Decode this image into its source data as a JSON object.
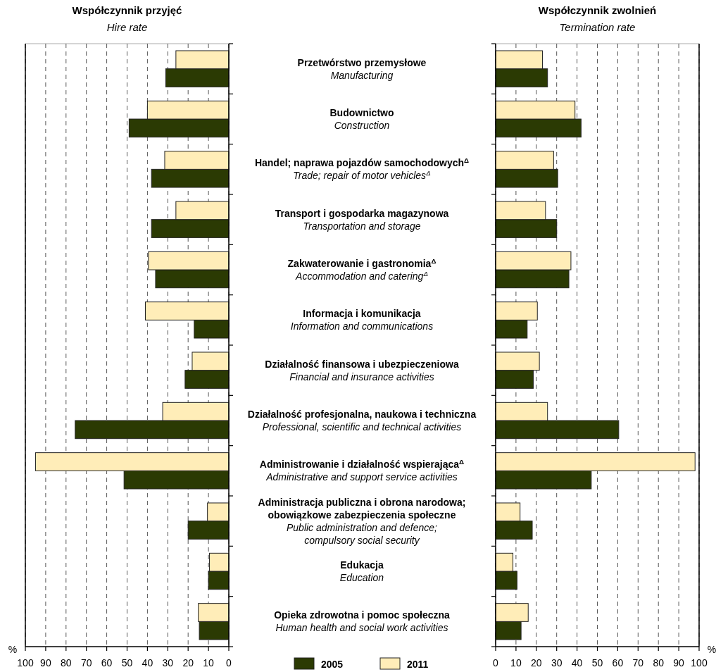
{
  "chart_data": [
    {
      "type": "bar",
      "orientation": "horizontal",
      "title": "Współczynnik przyjęć",
      "subtitle": "Hire rate",
      "xlabel": "%",
      "categories": [
        "Przetwórstwo przemysłowe\nManufacturing",
        "Budownictwo\nConstruction",
        "Handel; naprawa pojazdów samochodowych$^{Δ}$\nTrade; repair of motor vehicles$^{Δ}$",
        "Transport i gospodarka magazynowa\nTransportation and storage",
        "Zakwaterowanie i gastronomia$^{Δ}$\nAccommodation and catering$^{Δ}$",
        "Informacja i komunikacja\nInformation and communications",
        "Działalność finansowa i ubezpieczeniowa\nFinancial and insurance activities",
        "Działalność profesjonalna, naukowa i techniczna\nProfessional, scientific and technical activities",
        "Administrowanie i działalność wspierająca$^{Δ}$\nAdministrative and support service activities",
        "Administracja publiczna i obrona narodowa;\nobowiązkowe zabezpieczenia społeczne\nPublic administration and defence;\ncompulsory social security",
        "Edukacja\nEducation",
        "Opieka zdrowotna i pomoc społeczna\nHuman health and social work activities"
      ],
      "series": [
        {
          "name": "2005",
          "color": "#2b3a03",
          "values": [
            31,
            49,
            38,
            38,
            36,
            17,
            21.5,
            75.5,
            51.5,
            20,
            10,
            14.5
          ]
        },
        {
          "name": "2011",
          "color": "#ffedb8",
          "values": [
            26,
            40,
            31.5,
            26,
            39.5,
            41,
            18,
            32.5,
            95,
            10.5,
            9.5,
            15
          ]
        }
      ],
      "xlim": [
        100,
        0
      ],
      "xticks": [
        100,
        90,
        80,
        70,
        60,
        50,
        40,
        30,
        20,
        10,
        0
      ],
      "grid": "x",
      "legend": "bottom"
    },
    {
      "type": "bar",
      "orientation": "horizontal",
      "title": "Współczynnik zwolnień",
      "subtitle": "Termination rate",
      "xlabel": "%",
      "categories": [
        null,
        null,
        null,
        null,
        null,
        null,
        null,
        null,
        null,
        null,
        null,
        null
      ],
      "series": [
        {
          "color": "#2b3a03",
          "values": [
            25.5,
            42,
            30.5,
            30,
            36,
            15.5,
            18.5,
            60.5,
            47,
            18,
            10.5,
            12.5
          ]
        },
        {
          "color": "#ffedb8",
          "values": [
            23,
            39,
            28.5,
            24.5,
            37,
            20.5,
            21.5,
            25.5,
            98,
            12,
            8.5,
            16
          ]
        }
      ],
      "xlim": [
        0,
        100
      ],
      "xticks": [
        0,
        10,
        20,
        30,
        40,
        50,
        60,
        70,
        80,
        90,
        100
      ],
      "grid": "x",
      "tick_labels": "x"
    }
  ]
}
